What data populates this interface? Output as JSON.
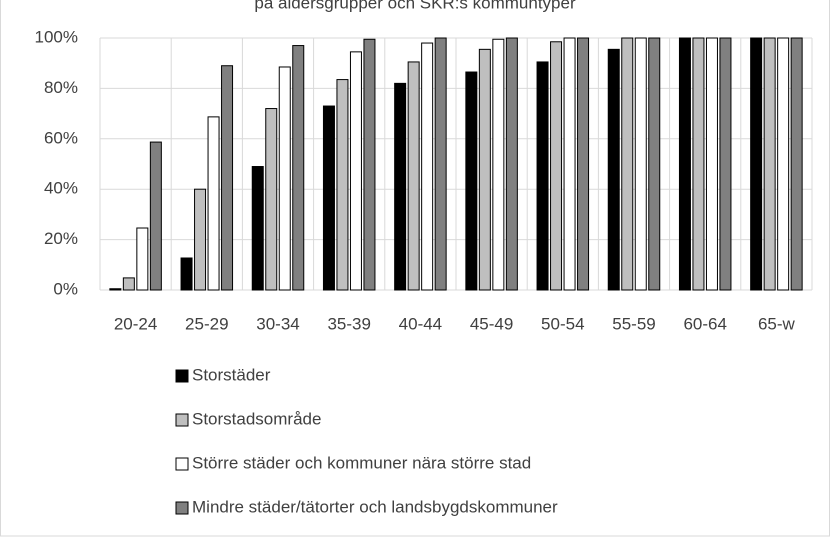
{
  "chart_data": {
    "type": "bar",
    "title": "på åldersgrupper och SKR:s kommuntyper",
    "categories": [
      "20-24",
      "25-29",
      "30-34",
      "35-39",
      "40-44",
      "45-49",
      "50-54",
      "55-59",
      "60-64",
      "65-w"
    ],
    "series": [
      {
        "name": "Storstäder",
        "color": "#000000",
        "values": [
          0.5,
          12.7,
          49,
          73,
          82,
          86.5,
          90.5,
          95.5,
          100,
          100
        ]
      },
      {
        "name": "Storstadsområde",
        "color": "#bfbfbf",
        "values": [
          4.8,
          40,
          72,
          83.5,
          90.5,
          95.5,
          98.5,
          100,
          100,
          100
        ]
      },
      {
        "name": "Större städer och kommuner nära större stad",
        "color": "#ffffff",
        "values": [
          24.6,
          68.7,
          88.5,
          94.5,
          98,
          99.5,
          100,
          100,
          100,
          100
        ]
      },
      {
        "name": "Mindre städer/tätorter och landsbygdskommuner",
        "color": "#808080",
        "values": [
          58.7,
          89,
          97,
          99.5,
          100,
          100,
          100,
          100,
          100,
          100
        ]
      }
    ],
    "ylim": [
      0,
      100
    ],
    "yticks": [
      {
        "value": 0,
        "label": "0%"
      },
      {
        "value": 20,
        "label": "20%"
      },
      {
        "value": 40,
        "label": "40%"
      },
      {
        "value": 60,
        "label": "60%"
      },
      {
        "value": 80,
        "label": "80%"
      },
      {
        "value": 100,
        "label": "100%"
      }
    ],
    "grid": true
  }
}
